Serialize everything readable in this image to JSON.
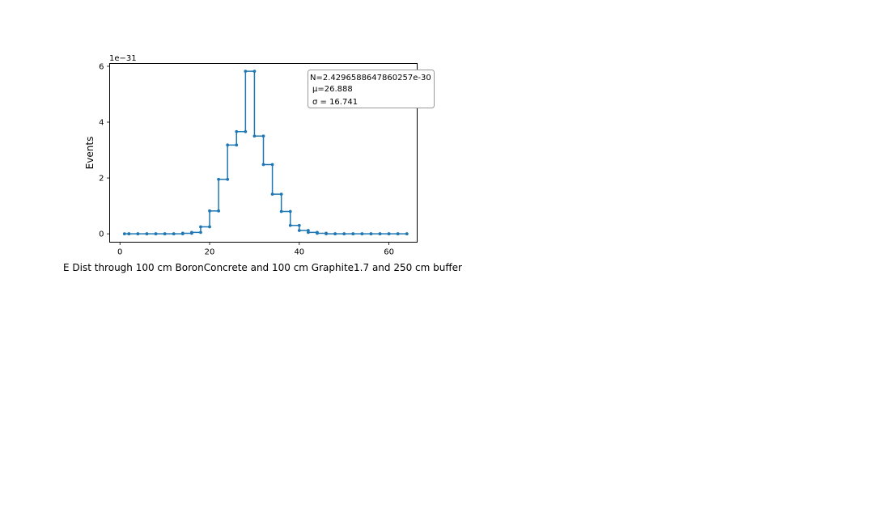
{
  "chart_data": {
    "type": "line",
    "style": "step",
    "title": "",
    "xlabel": "E Dist through 100 cm BoronConcrete and 100 cm Graphite1.7 and 250 cm buffer",
    "ylabel": "Events",
    "y_offset_label": "1e−31",
    "xlim": [
      -2.3,
      66.3
    ],
    "ylim": [
      -0.3,
      6.1
    ],
    "grid": false,
    "x_ticks": [
      0,
      20,
      40,
      60
    ],
    "x_tick_labels": [
      "0",
      "20",
      "40",
      "60"
    ],
    "y_ticks": [
      0,
      2,
      4,
      6
    ],
    "y_tick_labels": [
      "0",
      "2",
      "4",
      "6"
    ],
    "series_color": "#1f77b4",
    "stats_box": {
      "lines": [
        "N=2.4296588647860257e-30",
        "μ=26.888",
        "σ = 16.741"
      ],
      "placement": "top-right"
    },
    "x": [
      1.0,
      2.0,
      4.0,
      6.0,
      8.0,
      10.0,
      12.0,
      14.0,
      16.0,
      18.0,
      20.0,
      22.0,
      24.0,
      26.0,
      28.0,
      30.0,
      32.0,
      34.0,
      36.0,
      38.0,
      40.0,
      42.0,
      44.0,
      46.0,
      48.0,
      50.0,
      52.0,
      54.0,
      56.0,
      58.0,
      60.0,
      62.0,
      64.0
    ],
    "y": [
      0.0,
      0.0,
      0.0,
      0.0,
      0.0,
      0.0,
      0.0,
      0.02,
      0.05,
      0.25,
      0.82,
      1.95,
      3.18,
      3.66,
      5.82,
      3.5,
      2.48,
      1.42,
      0.8,
      0.3,
      0.12,
      0.05,
      0.02,
      0.0,
      0.0,
      0.0,
      0.0,
      0.0,
      0.0,
      0.0,
      0.0,
      0.0,
      0.0
    ]
  }
}
